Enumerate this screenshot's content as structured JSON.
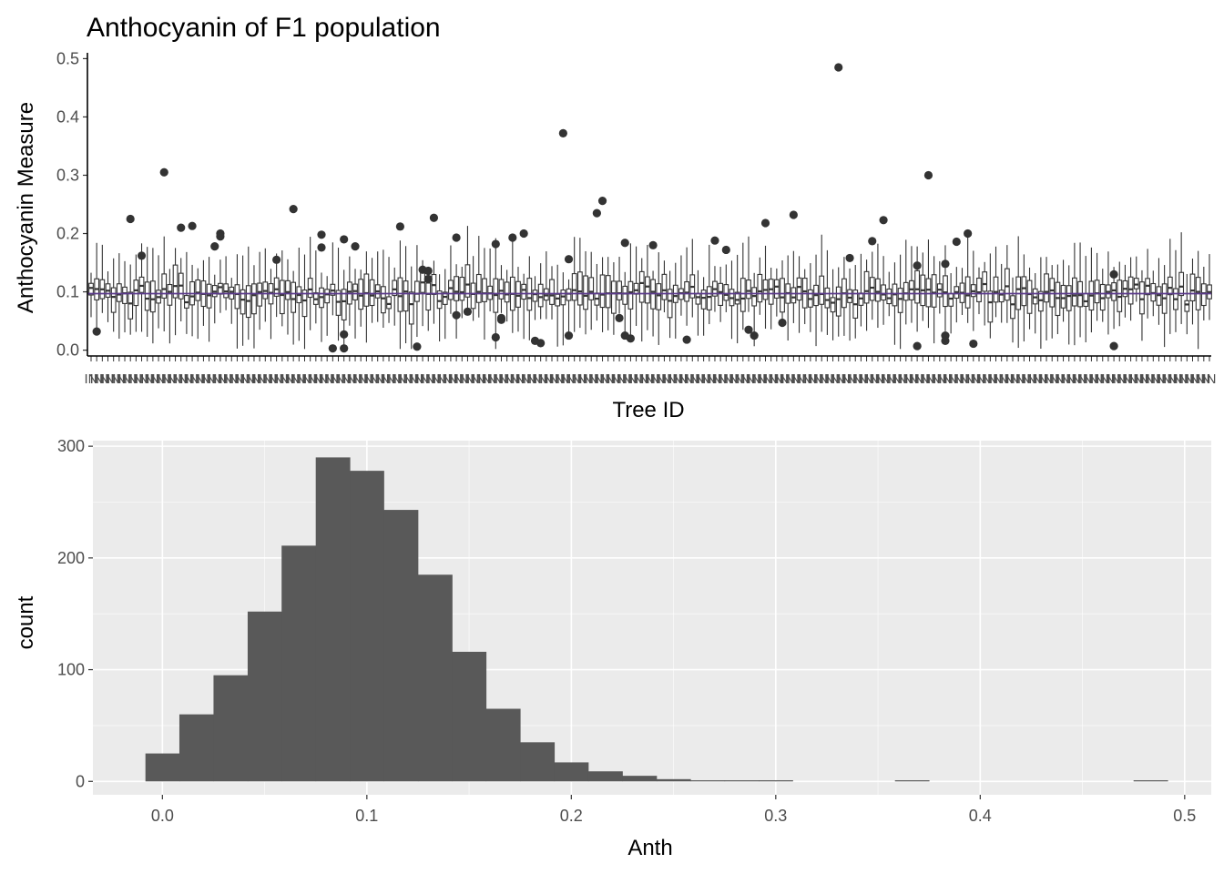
{
  "chart_data": [
    {
      "type": "box",
      "title": "Anthocyanin of F1 population",
      "xlabel": "Tree ID",
      "ylabel": "Anthocyanin Measure",
      "ylim": [
        -0.01,
        0.51
      ],
      "y_ticks": [
        0.0,
        0.1,
        0.2,
        0.3,
        0.4,
        0.5
      ],
      "y_tick_labels": [
        "0.0",
        "0.1",
        "0.2",
        "0.3",
        "0.4",
        "0.5"
      ],
      "x_tick_label_text": "IN",
      "grid": false,
      "reference_line": {
        "value": 0.097,
        "color": "#5b3a8c"
      },
      "colors": {
        "box_stroke": "#333333",
        "box_fill": "#ffffff",
        "outlier": "#333333",
        "axis": "#000000"
      },
      "seed": 7,
      "tree_count": 200,
      "outliers": [
        [
          1,
          0.032
        ],
        [
          7,
          0.225
        ],
        [
          9,
          0.162
        ],
        [
          13,
          0.305
        ],
        [
          16,
          0.21
        ],
        [
          18,
          0.213
        ],
        [
          22,
          0.178
        ],
        [
          23,
          0.2
        ],
        [
          23,
          0.195
        ],
        [
          33,
          0.155
        ],
        [
          36,
          0.242
        ],
        [
          41,
          0.198
        ],
        [
          41,
          0.176
        ],
        [
          43,
          0.003
        ],
        [
          45,
          0.19
        ],
        [
          45,
          0.027
        ],
        [
          45,
          0.003
        ],
        [
          47,
          0.178
        ],
        [
          55,
          0.212
        ],
        [
          58,
          0.006
        ],
        [
          59,
          0.138
        ],
        [
          60,
          0.136
        ],
        [
          60,
          0.122
        ],
        [
          61,
          0.227
        ],
        [
          65,
          0.193
        ],
        [
          65,
          0.06
        ],
        [
          67,
          0.066
        ],
        [
          72,
          0.182
        ],
        [
          72,
          0.022
        ],
        [
          73,
          0.055
        ],
        [
          73,
          0.052
        ],
        [
          75,
          0.193
        ],
        [
          77,
          0.2
        ],
        [
          79,
          0.016
        ],
        [
          80,
          0.012
        ],
        [
          84,
          0.372
        ],
        [
          85,
          0.156
        ],
        [
          85,
          0.025
        ],
        [
          90,
          0.235
        ],
        [
          91,
          0.256
        ],
        [
          94,
          0.055
        ],
        [
          95,
          0.184
        ],
        [
          95,
          0.025
        ],
        [
          96,
          0.02
        ],
        [
          100,
          0.18
        ],
        [
          106,
          0.018
        ],
        [
          111,
          0.188
        ],
        [
          113,
          0.172
        ],
        [
          117,
          0.035
        ],
        [
          118,
          0.025
        ],
        [
          120,
          0.218
        ],
        [
          123,
          0.047
        ],
        [
          125,
          0.232
        ],
        [
          133,
          0.485
        ],
        [
          135,
          0.158
        ],
        [
          139,
          0.187
        ],
        [
          141,
          0.223
        ],
        [
          147,
          0.007
        ],
        [
          147,
          0.145
        ],
        [
          149,
          0.3
        ],
        [
          152,
          0.148
        ],
        [
          152,
          0.025
        ],
        [
          152,
          0.016
        ],
        [
          154,
          0.186
        ],
        [
          156,
          0.2
        ],
        [
          157,
          0.011
        ],
        [
          182,
          0.13
        ],
        [
          182,
          0.007
        ]
      ]
    },
    {
      "type": "histogram",
      "title": "",
      "xlabel": "Anth",
      "ylabel": "count",
      "xlim": [
        -0.034,
        0.513
      ],
      "ylim": [
        -12,
        305
      ],
      "x_ticks": [
        0.0,
        0.1,
        0.2,
        0.3,
        0.4,
        0.5
      ],
      "x_tick_labels": [
        "0.0",
        "0.1",
        "0.2",
        "0.3",
        "0.4",
        "0.5"
      ],
      "y_ticks": [
        0,
        100,
        200,
        300
      ],
      "y_tick_labels": [
        "0",
        "100",
        "200",
        "300"
      ],
      "bin_width": 0.0167,
      "bins": [
        {
          "x0": -0.0083,
          "x1": 0.0083,
          "count": 25
        },
        {
          "x0": 0.0083,
          "x1": 0.025,
          "count": 60
        },
        {
          "x0": 0.025,
          "x1": 0.0417,
          "count": 95
        },
        {
          "x0": 0.0417,
          "x1": 0.0583,
          "count": 152
        },
        {
          "x0": 0.0583,
          "x1": 0.075,
          "count": 211
        },
        {
          "x0": 0.075,
          "x1": 0.0917,
          "count": 290
        },
        {
          "x0": 0.0917,
          "x1": 0.1083,
          "count": 278
        },
        {
          "x0": 0.1083,
          "x1": 0.125,
          "count": 243
        },
        {
          "x0": 0.125,
          "x1": 0.1417,
          "count": 185
        },
        {
          "x0": 0.1417,
          "x1": 0.1583,
          "count": 116
        },
        {
          "x0": 0.1583,
          "x1": 0.175,
          "count": 65
        },
        {
          "x0": 0.175,
          "x1": 0.1917,
          "count": 35
        },
        {
          "x0": 0.1917,
          "x1": 0.2083,
          "count": 17
        },
        {
          "x0": 0.2083,
          "x1": 0.225,
          "count": 9
        },
        {
          "x0": 0.225,
          "x1": 0.2417,
          "count": 5
        },
        {
          "x0": 0.2417,
          "x1": 0.2583,
          "count": 2
        },
        {
          "x0": 0.2583,
          "x1": 0.275,
          "count": 0
        },
        {
          "x0": 0.275,
          "x1": 0.2917,
          "count": 0
        },
        {
          "x0": 0.2917,
          "x1": 0.3083,
          "count": 1
        },
        {
          "x0": 0.3583,
          "x1": 0.375,
          "count": 1
        },
        {
          "x0": 0.475,
          "x1": 0.4917,
          "count": 1
        }
      ],
      "colors": {
        "panel": "#ebebeb",
        "grid_major": "#ffffff",
        "bar": "#595959"
      }
    }
  ]
}
